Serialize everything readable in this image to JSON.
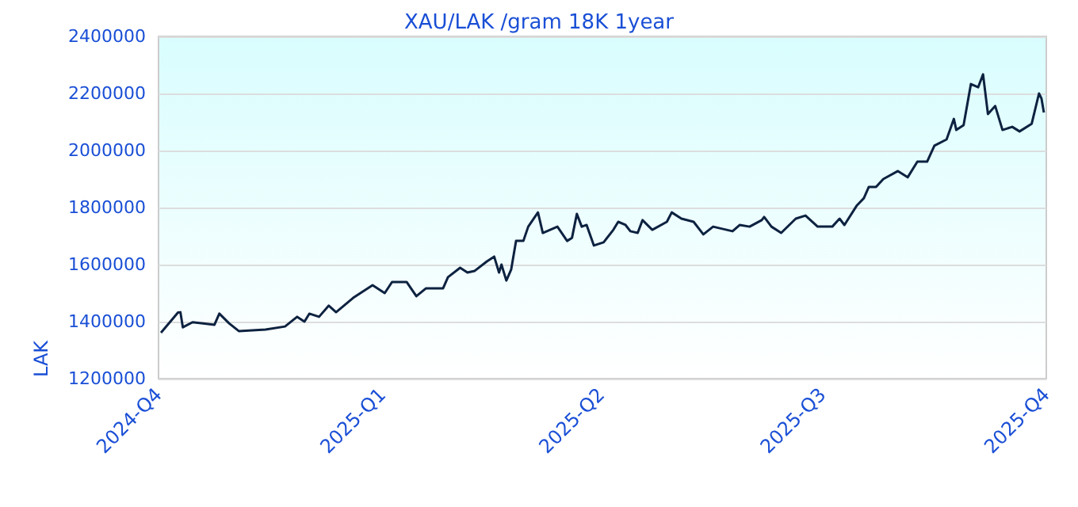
{
  "chart_data": {
    "type": "line",
    "title": "XAU/LAK /gram 18K 1year",
    "ylabel": "LAK",
    "x": [
      "2024-10-02",
      "2024-10-09",
      "2024-10-10",
      "2024-10-11",
      "2024-10-15",
      "2024-10-24",
      "2024-10-26",
      "2024-10-30",
      "2024-11-03",
      "2024-11-14",
      "2024-11-22",
      "2024-11-27",
      "2024-11-30",
      "2024-12-02",
      "2024-12-06",
      "2024-12-10",
      "2024-12-13",
      "2024-12-20",
      "2024-12-23",
      "2024-12-28",
      "2025-01-02",
      "2025-01-05",
      "2025-01-11",
      "2025-01-15",
      "2025-01-19",
      "2025-01-26",
      "2025-01-28",
      "2025-02-02",
      "2025-02-05",
      "2025-02-08",
      "2025-02-13",
      "2025-02-16",
      "2025-02-18",
      "2025-02-19",
      "2025-02-21",
      "2025-02-23",
      "2025-02-25",
      "2025-02-28",
      "2025-03-02",
      "2025-03-06",
      "2025-03-08",
      "2025-03-14",
      "2025-03-18",
      "2025-03-20",
      "2025-03-22",
      "2025-03-24",
      "2025-03-26",
      "2025-03-29",
      "2025-04-02",
      "2025-04-06",
      "2025-04-08",
      "2025-04-11",
      "2025-04-13",
      "2025-04-16",
      "2025-04-18",
      "2025-04-22",
      "2025-04-28",
      "2025-04-30",
      "2025-05-04",
      "2025-05-09",
      "2025-05-13",
      "2025-05-17",
      "2025-05-25",
      "2025-05-28",
      "2025-06-01",
      "2025-06-06",
      "2025-06-07",
      "2025-06-10",
      "2025-06-14",
      "2025-06-20",
      "2025-06-24",
      "2025-06-29",
      "2025-07-05",
      "2025-07-08",
      "2025-07-10",
      "2025-07-15",
      "2025-07-18",
      "2025-07-20",
      "2025-07-23",
      "2025-07-26",
      "2025-08-01",
      "2025-08-05",
      "2025-08-09",
      "2025-08-13",
      "2025-08-16",
      "2025-08-21",
      "2025-08-24",
      "2025-08-25",
      "2025-08-28",
      "2025-08-31",
      "2025-09-03",
      "2025-09-05",
      "2025-09-07",
      "2025-09-10",
      "2025-09-13",
      "2025-09-17",
      "2025-09-20",
      "2025-09-25",
      "2025-09-28",
      "2025-09-29",
      "2025-09-30"
    ],
    "series": [
      {
        "color": "#0d2240",
        "values": [
          1361000,
          1432000,
          1433000,
          1380000,
          1398000,
          1389000,
          1428000,
          1394000,
          1367000,
          1372000,
          1383000,
          1417000,
          1400000,
          1428000,
          1417000,
          1456000,
          1433000,
          1483000,
          1500000,
          1528000,
          1500000,
          1539000,
          1539000,
          1489000,
          1517000,
          1517000,
          1556000,
          1589000,
          1572000,
          1578000,
          1611000,
          1628000,
          1572000,
          1600000,
          1544000,
          1583000,
          1683000,
          1683000,
          1733000,
          1783000,
          1711000,
          1733000,
          1683000,
          1694000,
          1778000,
          1733000,
          1739000,
          1667000,
          1678000,
          1722000,
          1750000,
          1739000,
          1717000,
          1711000,
          1756000,
          1722000,
          1750000,
          1783000,
          1761000,
          1750000,
          1706000,
          1733000,
          1717000,
          1739000,
          1733000,
          1756000,
          1767000,
          1733000,
          1711000,
          1761000,
          1772000,
          1733000,
          1733000,
          1761000,
          1739000,
          1806000,
          1833000,
          1872000,
          1872000,
          1900000,
          1928000,
          1906000,
          1961000,
          1961000,
          2017000,
          2039000,
          2111000,
          2072000,
          2089000,
          2233000,
          2222000,
          2267000,
          2128000,
          2156000,
          2072000,
          2083000,
          2067000,
          2094000,
          2200000,
          2183000,
          2133000
        ]
      }
    ],
    "xlim": [
      "2024-10-01",
      "2025-10-01"
    ],
    "xticks": [
      {
        "value": "2024-10-01",
        "label": "2024-Q4"
      },
      {
        "value": "2025-01-01",
        "label": "2025-Q1"
      },
      {
        "value": "2025-04-01",
        "label": "2025-Q2"
      },
      {
        "value": "2025-07-01",
        "label": "2025-Q3"
      },
      {
        "value": "2025-10-01",
        "label": "2025-Q4"
      }
    ],
    "ylim": [
      1200000,
      2400000
    ],
    "yticks": [
      1200000,
      1400000,
      1600000,
      1800000,
      2000000,
      2200000,
      2400000
    ],
    "grid": "y",
    "marker": "none",
    "line_style": "solid"
  }
}
